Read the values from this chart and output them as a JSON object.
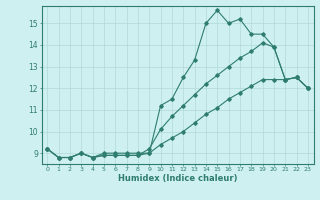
{
  "xlabel": "Humidex (Indice chaleur)",
  "bg_color": "#cff0f0",
  "line_color": "#2e7d6e",
  "grid_color": "#b0d8d8",
  "xlim": [
    -0.5,
    23.5
  ],
  "ylim": [
    8.5,
    15.8
  ],
  "xticks": [
    0,
    1,
    2,
    3,
    4,
    5,
    6,
    7,
    8,
    9,
    10,
    11,
    12,
    13,
    14,
    15,
    16,
    17,
    18,
    19,
    20,
    21,
    22,
    23
  ],
  "yticks": [
    9,
    10,
    11,
    12,
    13,
    14,
    15
  ],
  "series1_x": [
    0,
    1,
    2,
    3,
    4,
    5,
    6,
    7,
    8,
    9,
    10,
    11,
    12,
    13,
    14,
    15,
    16,
    17,
    18,
    19,
    20,
    21,
    22,
    23
  ],
  "series1_y": [
    9.2,
    8.8,
    8.8,
    9.0,
    8.8,
    9.0,
    9.0,
    9.0,
    9.0,
    9.0,
    11.2,
    11.5,
    12.5,
    13.3,
    15.0,
    15.6,
    15.0,
    15.2,
    14.5,
    14.5,
    13.9,
    12.4,
    12.5,
    12.0
  ],
  "series2_x": [
    0,
    1,
    2,
    3,
    4,
    5,
    6,
    7,
    8,
    9,
    10,
    11,
    12,
    13,
    14,
    15,
    16,
    17,
    18,
    19,
    20,
    21,
    22,
    23
  ],
  "series2_y": [
    9.2,
    8.8,
    8.8,
    9.0,
    8.8,
    8.9,
    8.9,
    8.9,
    8.9,
    9.2,
    10.1,
    10.7,
    11.2,
    11.7,
    12.2,
    12.6,
    13.0,
    13.4,
    13.7,
    14.1,
    13.9,
    12.4,
    12.5,
    12.0
  ],
  "series3_x": [
    0,
    1,
    2,
    3,
    4,
    5,
    6,
    7,
    8,
    9,
    10,
    11,
    12,
    13,
    14,
    15,
    16,
    17,
    18,
    19,
    20,
    21,
    22,
    23
  ],
  "series3_y": [
    9.2,
    8.8,
    8.8,
    9.0,
    8.8,
    8.9,
    8.9,
    8.9,
    8.9,
    9.0,
    9.4,
    9.7,
    10.0,
    10.4,
    10.8,
    11.1,
    11.5,
    11.8,
    12.1,
    12.4,
    12.4,
    12.4,
    12.5,
    12.0
  ]
}
